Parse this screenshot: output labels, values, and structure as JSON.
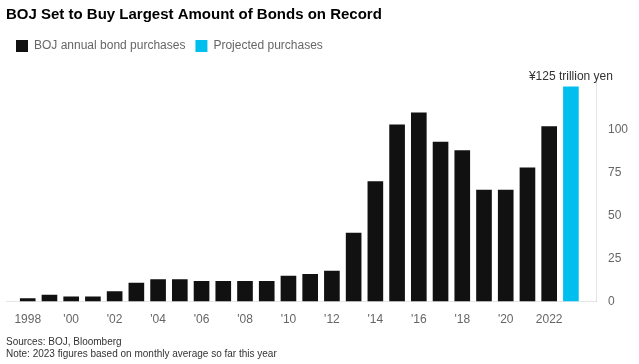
{
  "chart_data": {
    "type": "bar",
    "title": "BOJ Set to Buy Largest Amount of Bonds on Record",
    "annotation": "¥125 trillion yen",
    "source": "Sources: BOJ, Bloomberg\nNote: 2023 figures based on monthly average so far this year",
    "x": [
      1998,
      1999,
      2000,
      2001,
      2002,
      2003,
      2004,
      2005,
      2006,
      2007,
      2008,
      2009,
      2010,
      2011,
      2012,
      2013,
      2014,
      2015,
      2016,
      2017,
      2018,
      2019,
      2020,
      2021,
      2022,
      2023
    ],
    "series": [
      {
        "name": "BOJ annual bond purchases",
        "color": "#111111",
        "values": [
          2,
          4,
          3,
          3,
          6,
          11,
          13,
          13,
          12,
          12,
          12,
          12,
          15,
          16,
          18,
          40,
          70,
          103,
          110,
          93,
          88,
          65,
          65,
          78,
          102,
          null
        ]
      },
      {
        "name": "Projected purchases",
        "color": "#00bfef",
        "values": [
          null,
          null,
          null,
          null,
          null,
          null,
          null,
          null,
          null,
          null,
          null,
          null,
          null,
          null,
          null,
          null,
          null,
          null,
          null,
          null,
          null,
          null,
          null,
          null,
          null,
          125
        ]
      }
    ],
    "xlim": [
      1997,
      2024.2
    ],
    "xticks": [
      1998,
      {
        "value": 2000,
        "label": "'00"
      },
      {
        "value": 2002,
        "label": "'02"
      },
      {
        "value": 2004,
        "label": "'04"
      },
      {
        "value": 2006,
        "label": "'06"
      },
      {
        "value": 2008,
        "label": "'08"
      },
      {
        "value": 2010,
        "label": "'10"
      },
      {
        "value": 2012,
        "label": "'12"
      },
      {
        "value": 2014,
        "label": "'14"
      },
      {
        "value": 2016,
        "label": "'16"
      },
      {
        "value": 2018,
        "label": "'18"
      },
      {
        "value": 2020,
        "label": "'20"
      },
      2022
    ],
    "ylim": [
      0,
      130
    ],
    "yticks": [
      0,
      25,
      50,
      75,
      100
    ],
    "grid": false,
    "legend": "top-left"
  }
}
